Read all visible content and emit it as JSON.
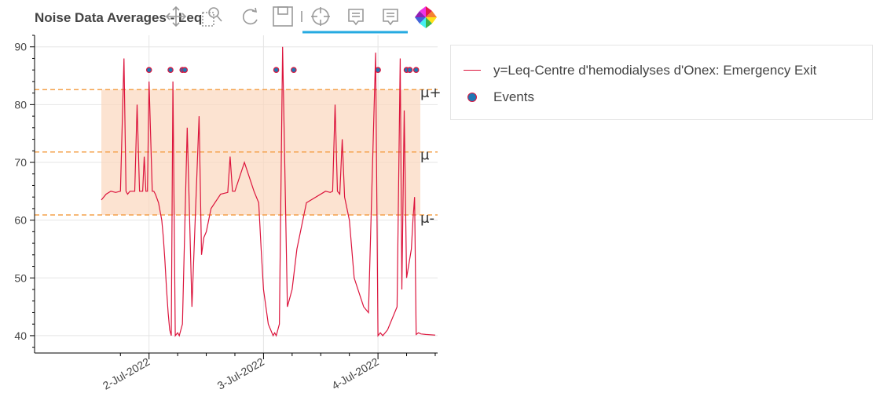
{
  "chart_data": {
    "type": "line",
    "title": "Noise Data Averages - Leq",
    "x_ticks": [
      "2-Jul-2022",
      "3-Jul-2022",
      "4-Jul-2022"
    ],
    "y_ticks": [
      40,
      50,
      60,
      70,
      80,
      90
    ],
    "ylim": [
      37,
      92
    ],
    "xlim": [
      "2022-07-01 00:00",
      "2022-07-04 12:30"
    ],
    "grid": true,
    "legend_position": "right",
    "series": [
      {
        "name": "y=Leq-Centre d'hemodialyses d'Onex: Emergency Exit",
        "color": "#dc143c",
        "x": [
          "2022-07-01 14:00",
          "2022-07-01 15:00",
          "2022-07-01 16:00",
          "2022-07-01 17:00",
          "2022-07-01 18:00",
          "2022-07-01 18:45",
          "2022-07-01 19:10",
          "2022-07-01 19:30",
          "2022-07-01 20:00",
          "2022-07-01 21:00",
          "2022-07-01 21:30",
          "2022-07-01 22:00",
          "2022-07-01 22:40",
          "2022-07-01 23:00",
          "2022-07-01 23:20",
          "2022-07-01 23:40",
          "2022-07-02 00:00",
          "2022-07-02 00:40",
          "2022-07-02 01:00",
          "2022-07-02 01:20",
          "2022-07-02 02:00",
          "2022-07-02 02:40",
          "2022-07-02 03:00",
          "2022-07-02 03:20",
          "2022-07-02 03:40",
          "2022-07-02 04:00",
          "2022-07-02 04:20",
          "2022-07-02 04:40",
          "2022-07-02 05:00",
          "2022-07-02 05:30",
          "2022-07-02 06:00",
          "2022-07-02 06:20",
          "2022-07-02 06:40",
          "2022-07-02 07:00",
          "2022-07-02 08:00",
          "2022-07-02 09:00",
          "2022-07-02 10:30",
          "2022-07-02 11:00",
          "2022-07-02 11:30",
          "2022-07-02 12:00",
          "2022-07-02 13:00",
          "2022-07-02 15:00",
          "2022-07-02 16:30",
          "2022-07-02 17:00",
          "2022-07-02 17:30",
          "2022-07-02 18:00",
          "2022-07-02 20:00",
          "2022-07-02 22:00",
          "2022-07-02 23:00",
          "2022-07-02 23:30",
          "2022-07-03 00:00",
          "2022-07-03 01:00",
          "2022-07-03 02:00",
          "2022-07-03 02:20",
          "2022-07-03 02:40",
          "2022-07-03 03:20",
          "2022-07-03 04:00",
          "2022-07-03 05:00",
          "2022-07-03 06:00",
          "2022-07-03 07:00",
          "2022-07-03 09:00",
          "2022-07-03 13:00",
          "2022-07-03 14:00",
          "2022-07-03 14:30",
          "2022-07-03 15:00",
          "2022-07-03 15:30",
          "2022-07-03 16:00",
          "2022-07-03 16:30",
          "2022-07-03 17:00",
          "2022-07-03 18:00",
          "2022-07-03 19:00",
          "2022-07-03 21:00",
          "2022-07-03 22:00",
          "2022-07-03 23:30",
          "2022-07-04 00:00",
          "2022-07-04 00:30",
          "2022-07-04 01:00",
          "2022-07-04 02:00",
          "2022-07-04 04:00",
          "2022-07-04 04:40",
          "2022-07-04 05:00",
          "2022-07-04 05:30",
          "2022-07-04 06:00",
          "2022-07-04 07:00",
          "2022-07-04 07:20",
          "2022-07-04 07:40",
          "2022-07-04 08:00",
          "2022-07-04 08:30",
          "2022-07-04 09:00",
          "2022-07-04 10:00",
          "2022-07-04 12:00"
        ],
        "y": [
          63.5,
          64.5,
          65,
          64.8,
          65,
          88,
          65,
          64.5,
          65,
          65,
          80,
          65,
          65,
          71,
          65,
          65,
          84,
          65,
          65,
          64.5,
          63,
          60,
          57,
          53,
          48,
          44,
          41,
          40,
          84,
          40,
          40.5,
          40,
          41,
          42,
          76,
          45,
          78,
          54,
          57,
          58,
          62,
          64.5,
          64.8,
          71,
          65,
          65,
          70,
          65,
          63,
          55,
          48,
          42,
          40,
          40.5,
          40,
          42,
          90,
          45,
          48,
          55,
          63,
          65,
          64.8,
          65,
          80,
          65,
          64.5,
          74,
          64,
          60,
          50,
          45,
          44,
          89,
          40,
          40.5,
          40,
          41,
          45,
          88,
          48,
          79,
          50,
          55,
          60,
          64,
          40.2,
          40.5,
          40.3,
          40.2,
          40.1
        ]
      }
    ],
    "events": {
      "name": "Events",
      "y": 86,
      "x": [
        "2022-07-02 00:00",
        "2022-07-02 04:30",
        "2022-07-02 07:00",
        "2022-07-02 07:30",
        "2022-07-03 02:40",
        "2022-07-03 06:20",
        "2022-07-04 00:00",
        "2022-07-04 06:00",
        "2022-07-04 06:40",
        "2022-07-04 08:00"
      ]
    },
    "stats": {
      "mean": 71.8,
      "upper": 82.6,
      "lower": 60.9,
      "labels": [
        "μ+",
        "μ",
        "μ-"
      ]
    }
  }
}
